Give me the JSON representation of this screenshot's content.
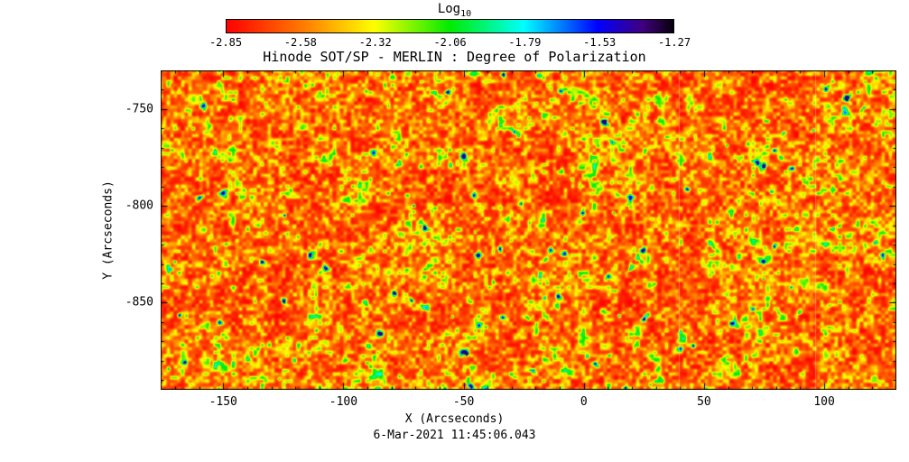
{
  "figure": {
    "title": "Hinode SOT/SP - MERLIN : Degree of Polarization",
    "timestamp": "6-Mar-2021 11:45:06.043"
  },
  "colorbar": {
    "title": "Log",
    "title_subscript": "10",
    "tick_labels": [
      "-2.85",
      "-2.58",
      "-2.32",
      "-2.06",
      "-1.79",
      "-1.53",
      "-1.27"
    ]
  },
  "axes": {
    "x": {
      "label": "X (Arcseconds)",
      "tick_labels": [
        "-150",
        "-100",
        "-50",
        "0",
        "50",
        "100"
      ],
      "tick_values": [
        -150,
        -100,
        -50,
        0,
        50,
        100
      ],
      "minor_step": 10,
      "range": [
        -176,
        130
      ]
    },
    "y": {
      "label": "Y (Arcseconds)",
      "tick_labels": [
        "-750",
        "-800",
        "-850"
      ],
      "tick_values": [
        -750,
        -800,
        -850
      ],
      "minor_step": 10,
      "range": [
        -895,
        -730
      ]
    }
  },
  "chart_data": {
    "type": "heatmap",
    "title": "Hinode SOT/SP - MERLIN : Degree of Polarization",
    "xlabel": "X (Arcseconds)",
    "ylabel": "Y (Arcseconds)",
    "x_range": [
      -176,
      130
    ],
    "y_range": [
      -895,
      -730
    ],
    "x_ticks": [
      -150,
      -100,
      -50,
      0,
      50,
      100
    ],
    "y_ticks": [
      -750,
      -800,
      -850
    ],
    "grid": false,
    "colorbar": {
      "label": "Log10",
      "position": "top",
      "ticks": [
        -2.85,
        -2.58,
        -2.32,
        -2.06,
        -1.79,
        -1.53,
        -1.27
      ],
      "range": [
        -2.85,
        -1.27
      ]
    },
    "colormap_stops": [
      [
        0.0,
        255,
        0,
        0
      ],
      [
        0.165,
        255,
        118,
        0
      ],
      [
        0.33,
        255,
        255,
        0
      ],
      [
        0.5,
        0,
        235,
        0
      ],
      [
        0.665,
        0,
        255,
        255
      ],
      [
        0.83,
        0,
        0,
        255
      ],
      [
        0.93,
        64,
        0,
        128
      ],
      [
        1.0,
        8,
        0,
        12
      ]
    ],
    "timestamp": "6-Mar-2021 11:45:06.043",
    "summary": "Solar granulation-like field dominated by log10 degree of polarization near -2.8 to -2.6 (red/orange), mottled with frequent small yellow-green speckles and sparse cyan-to-dark-blue pores reaching roughly -1.6; faint brighter vertical seam near x = 0-10 arcsec and thin light columns near x = 50 and x = 95 arcsec.",
    "procedural": {
      "seed": 20210306,
      "octaves": [
        {
          "period": 4,
          "weight": 0.42
        },
        {
          "period": 8,
          "weight": 0.28
        },
        {
          "period": 16,
          "weight": 0.18
        },
        {
          "period": 44,
          "weight": 0.12
        }
      ],
      "scale": 0.85,
      "gamma": 2.4,
      "clamp": 0.95,
      "speckles": {
        "count": 150,
        "r_min": 1.1,
        "r_max": 3.2,
        "amp_min": 0.22,
        "amp_max": 0.55
      },
      "patches": {
        "count": 26,
        "r_min": 3,
        "r_max": 8,
        "amp_min": 0.1,
        "amp_max": 0.2
      },
      "seam": {
        "frac": 0.578,
        "sigma": 9,
        "amp": 0.045
      },
      "faint_lines": [
        0.704,
        0.889
      ]
    }
  }
}
